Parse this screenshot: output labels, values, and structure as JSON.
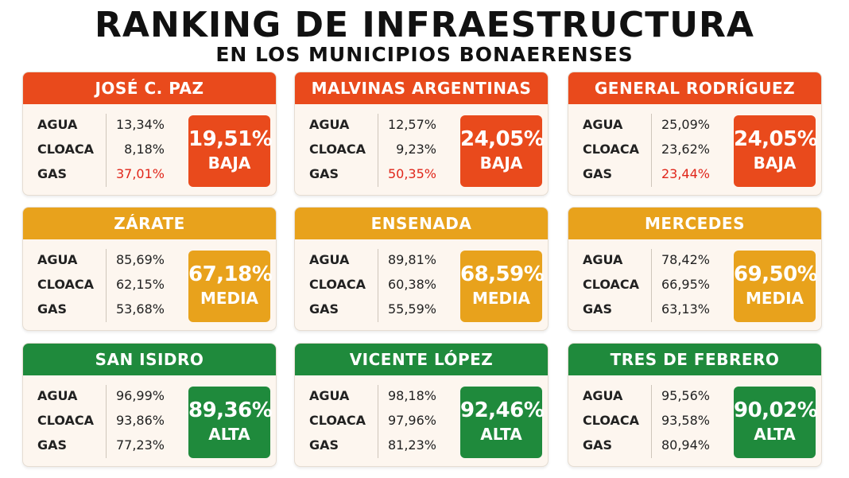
{
  "title": "RANKING DE INFRAESTRUCTURA",
  "subtitle": "EN LOS MUNICIPIOS BONAERENSES",
  "labels": {
    "agua": "AGUA",
    "cloaca": "CLOACA",
    "gas": "GAS"
  },
  "colors": {
    "baja": "#e94a1c",
    "media": "#e8a21c",
    "alta": "#1f8a3c",
    "low_value": "#e0261a"
  },
  "cards": [
    {
      "name": "JOSÉ C. PAZ",
      "agua": "13,34%",
      "cloaca": "8,18%",
      "gas": "37,01%",
      "score": "19,51%",
      "level": "BAJA"
    },
    {
      "name": "MALVINAS ARGENTINAS",
      "agua": "12,57%",
      "cloaca": "9,23%",
      "gas": "50,35%",
      "score": "24,05%",
      "level": "BAJA"
    },
    {
      "name": "GENERAL RODRÍGUEZ",
      "agua": "25,09%",
      "cloaca": "23,62%",
      "gas": "23,44%",
      "score": "24,05%",
      "level": "BAJA"
    },
    {
      "name": "ZÁRATE",
      "agua": "85,69%",
      "cloaca": "62,15%",
      "gas": "53,68%",
      "score": "67,18%",
      "level": "MEDIA"
    },
    {
      "name": "ENSENADA",
      "agua": "89,81%",
      "cloaca": "60,38%",
      "gas": "55,59%",
      "score": "68,59%",
      "level": "MEDIA"
    },
    {
      "name": "MERCEDES",
      "agua": "78,42%",
      "cloaca": "66,95%",
      "gas": "63,13%",
      "score": "69,50%",
      "level": "MEDIA"
    },
    {
      "name": "SAN ISIDRO",
      "agua": "96,99%",
      "cloaca": "93,86%",
      "gas": "77,23%",
      "score": "89,36%",
      "level": "ALTA"
    },
    {
      "name": "VICENTE LÓPEZ",
      "agua": "98,18%",
      "cloaca": "97,96%",
      "gas": "81,23%",
      "score": "92,46%",
      "level": "ALTA"
    },
    {
      "name": "TRES DE FEBRERO",
      "agua": "95,56%",
      "cloaca": "93,58%",
      "gas": "80,94%",
      "score": "90,02%",
      "level": "ALTA"
    }
  ]
}
